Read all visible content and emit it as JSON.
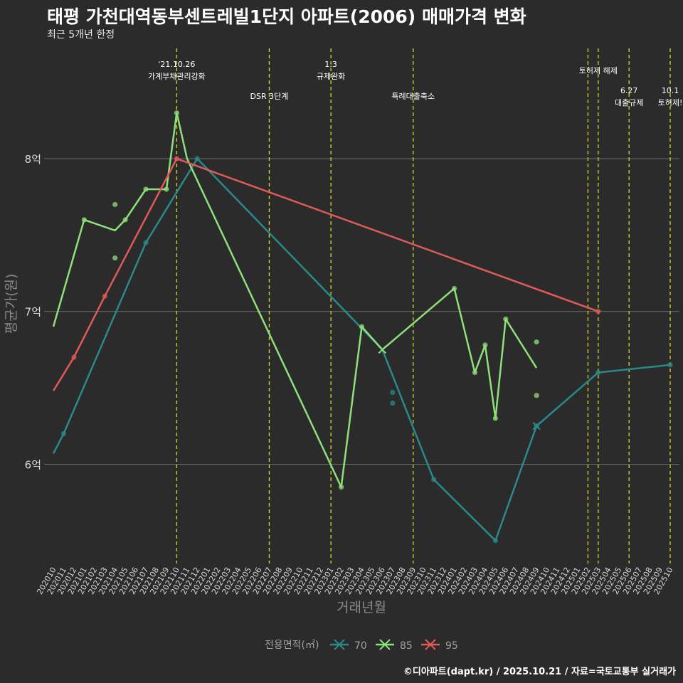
{
  "title": "태평 가천대역동부센트레빌1단지 아파트(2006) 매매가격 변화",
  "subtitle": "최근 5개년 한정",
  "caption": "©디아파트(dapt.kr) / 2025.10.21 / 자료=국토교통부 실거래가",
  "chart_data": {
    "type": "line",
    "title": "태평 가천대역동부센트레빌1단지 아파트(2006) 매매가격 변화",
    "xlabel": "거래년월",
    "ylabel": "평균가(원)",
    "ylim": [
      5.35,
      8.75
    ],
    "grid": true,
    "y_ticks": [
      {
        "value": 6,
        "label": "6억"
      },
      {
        "value": 7,
        "label": "7억"
      },
      {
        "value": 8,
        "label": "8억"
      }
    ],
    "categories": [
      "202010",
      "202011",
      "202012",
      "202101",
      "202102",
      "202103",
      "202104",
      "202105",
      "202106",
      "202107",
      "202108",
      "202109",
      "202110",
      "202111",
      "202112",
      "202201",
      "202202",
      "202203",
      "202204",
      "202205",
      "202206",
      "202207",
      "202208",
      "202209",
      "202210",
      "202211",
      "202212",
      "202301",
      "202302",
      "202303",
      "202304",
      "202305",
      "202306",
      "202307",
      "202308",
      "202309",
      "202310",
      "202311",
      "202312",
      "202401",
      "202402",
      "202403",
      "202404",
      "202405",
      "202406",
      "202407",
      "202408",
      "202409",
      "202410",
      "202411",
      "202412",
      "202501",
      "202502",
      "202503",
      "202504",
      "202505",
      "202506",
      "202507",
      "202508",
      "202509",
      "202510"
    ],
    "series": [
      {
        "name": "70",
        "color": "#2a8a8a",
        "line": [
          [
            "202010",
            6.07
          ],
          [
            "202011",
            6.2
          ],
          [
            "202107",
            7.45
          ],
          [
            "202112",
            8.0
          ],
          [
            "202306",
            6.75
          ],
          [
            "202311",
            5.9
          ],
          [
            "202405",
            5.5
          ],
          [
            "202409",
            6.25
          ],
          [
            "202503",
            6.6
          ],
          [
            "202510",
            6.65
          ]
        ],
        "points": [
          [
            "202011",
            6.2
          ],
          [
            "202107",
            7.45
          ],
          [
            "202112",
            8.0
          ],
          [
            "202307",
            6.47
          ],
          [
            "202307",
            6.4
          ],
          [
            "202311",
            5.9
          ],
          [
            "202405",
            5.5
          ],
          [
            "202409",
            6.25
          ],
          [
            "202503",
            6.6
          ],
          [
            "202510",
            6.65
          ]
        ],
        "cross_points": [
          [
            "202409",
            6.25
          ]
        ]
      },
      {
        "name": "85",
        "color": "#8ee07a",
        "line": [
          [
            "202010",
            6.9
          ],
          [
            "202101",
            7.6
          ],
          [
            "202104",
            7.53
          ],
          [
            "202105",
            7.6
          ],
          [
            "202107",
            7.8
          ],
          [
            "202109",
            7.8
          ],
          [
            "202110",
            8.3
          ],
          [
            "202111",
            8.0
          ],
          [
            "202302",
            5.85
          ],
          [
            "202304",
            6.9
          ],
          [
            "202306",
            6.75
          ],
          [
            "202401",
            7.15
          ],
          [
            "202403",
            6.6
          ],
          [
            "202404",
            6.78
          ],
          [
            "202405",
            6.3
          ],
          [
            "202406",
            6.95
          ],
          [
            "202409",
            6.63
          ]
        ],
        "points": [
          [
            "202101",
            7.6
          ],
          [
            "202104",
            7.7
          ],
          [
            "202104",
            7.35
          ],
          [
            "202105",
            7.6
          ],
          [
            "202107",
            7.8
          ],
          [
            "202109",
            7.8
          ],
          [
            "202110",
            8.3
          ],
          [
            "202302",
            5.85
          ],
          [
            "202304",
            6.9
          ],
          [
            "202401",
            7.15
          ],
          [
            "202403",
            6.6
          ],
          [
            "202404",
            6.78
          ],
          [
            "202405",
            6.3
          ],
          [
            "202406",
            6.95
          ],
          [
            "202409",
            6.8
          ],
          [
            "202409",
            6.45
          ]
        ],
        "cross_points": [
          [
            "202306",
            6.75
          ]
        ]
      },
      {
        "name": "95",
        "color": "#e05a5a",
        "line": [
          [
            "202010",
            6.48
          ],
          [
            "202012",
            6.7
          ],
          [
            "202103",
            7.1
          ],
          [
            "202110",
            8.0
          ],
          [
            "202503",
            7.0
          ]
        ],
        "points": [
          [
            "202012",
            6.7
          ],
          [
            "202103",
            7.1
          ],
          [
            "202110",
            8.0
          ],
          [
            "202503",
            7.0
          ]
        ],
        "cross_points": []
      }
    ],
    "events": [
      {
        "x": "202110",
        "labels": [
          "'21.10.26",
          "가계부채관리강화"
        ],
        "row": 0
      },
      {
        "x": "202207",
        "labels": [
          "DSR 3단계"
        ],
        "row": 2
      },
      {
        "x": "202301",
        "labels": [
          "1.3",
          "규제완화"
        ],
        "row": 0
      },
      {
        "x": "202309",
        "labels": [
          "특례대출축소"
        ],
        "row": 2
      },
      {
        "x": "202502",
        "labels": [],
        "row": 0
      },
      {
        "x": "202503",
        "labels": [
          "토허제 해제"
        ],
        "row": 1
      },
      {
        "x": "202506",
        "labels": [
          "6.27",
          "대출규제"
        ],
        "row": 3
      },
      {
        "x": "202510",
        "labels": [
          "10.1",
          "토허제!"
        ],
        "row": 3
      }
    ],
    "legend": {
      "title": "전용면적(㎡)",
      "position": "bottom"
    }
  }
}
